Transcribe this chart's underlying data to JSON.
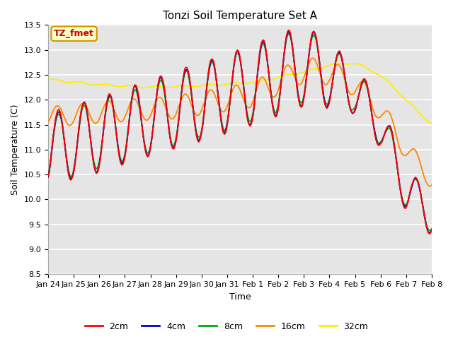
{
  "title": "Tonzi Soil Temperature Set A",
  "xlabel": "Time",
  "ylabel": "Soil Temperature (C)",
  "ylim": [
    8.5,
    13.5
  ],
  "annotation_text": "TZ_fmet",
  "annotation_bg": "#ffffcc",
  "annotation_border": "#cc9900",
  "annotation_text_color": "#cc0000",
  "bg_color": "#e5e5e5",
  "line_colors": {
    "2cm": "#ff0000",
    "4cm": "#0000cc",
    "8cm": "#00aa00",
    "16cm": "#ff8800",
    "32cm": "#ffee00"
  },
  "legend_labels": [
    "2cm",
    "4cm",
    "8cm",
    "16cm",
    "32cm"
  ],
  "tick_labels": [
    "Jan 24",
    "Jan 25",
    "Jan 26",
    "Jan 27",
    "Jan 28",
    "Jan 29",
    "Jan 30",
    "Jan 31",
    "Feb 1",
    "Feb 2",
    "Feb 3",
    "Feb 4",
    "Feb 5",
    "Feb 6",
    "Feb 7",
    "Feb 8"
  ],
  "figsize": [
    6.4,
    4.8
  ],
  "dpi": 100
}
